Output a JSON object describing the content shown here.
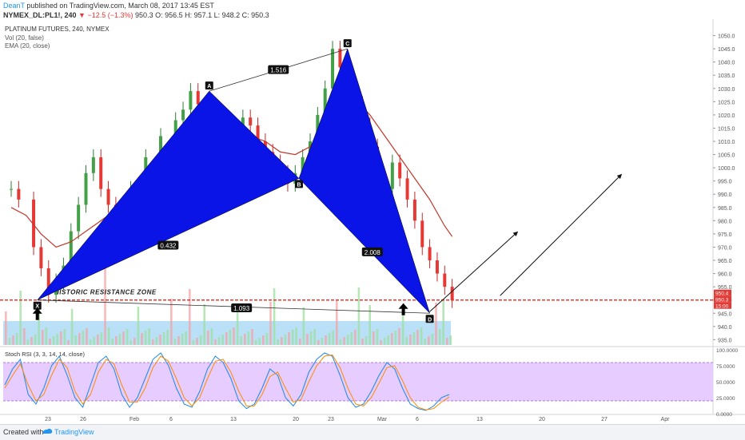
{
  "header": {
    "author": "DeanT",
    "published": "published on TradingView.com, March 08, 2017 13:45 EST",
    "symbol": "NYMEX_DL:PL1!, 240",
    "arrow": "▼",
    "change": "−12.5 (−1.3%)",
    "ohlc": "950.3 O: 956.5 H: 957.1 L: 948.2 C: 950.3"
  },
  "colors": {
    "pattern": "#0a14e6",
    "ema": "#c0392b",
    "volume_up": "#9fdf9f",
    "volume_down": "#f5a3a3",
    "volume_band": "#7fc6ee",
    "stoch_band": "#e6ccff",
    "resistance": "#e53935"
  },
  "chart_data": [
    {
      "type": "line",
      "title": "PLATINUM FUTURES, 240, NYMEX",
      "indicators": [
        "Vol (20, false)",
        "EMA (20, close)"
      ],
      "ylim": [
        933,
        1055
      ],
      "y_ticks": [
        "935.0",
        "940.0",
        "945.0",
        "950.0",
        "955.0",
        "960.0",
        "965.0",
        "970.0",
        "975.0",
        "980.0",
        "985.0",
        "990.0",
        "995.0",
        "1000.0",
        "1005.0",
        "1010.0",
        "1015.0",
        "1020.0",
        "1025.0",
        "1030.0",
        "1035.0",
        "1040.0",
        "1045.0",
        "1050.0"
      ],
      "x_ticks": [
        "23",
        "26",
        "Feb",
        "6",
        "13",
        "20",
        "23",
        "Mar",
        "6",
        "13",
        "20",
        "27",
        "Apr"
      ],
      "series": [
        {
          "name": "price",
          "points": [
            [
              0,
              992
            ],
            [
              1,
              988
            ],
            [
              3,
              970
            ],
            [
              4,
              962
            ],
            [
              5,
              952
            ],
            [
              6,
              957
            ],
            [
              7,
              963
            ],
            [
              8,
              976
            ],
            [
              9,
              986
            ],
            [
              10,
              998
            ],
            [
              11,
              1004
            ],
            [
              12,
              992
            ],
            [
              13,
              986
            ],
            [
              14,
              980
            ],
            [
              16,
              992
            ],
            [
              18,
              1004
            ],
            [
              20,
              1012
            ],
            [
              22,
              1018
            ],
            [
              23,
              1022
            ],
            [
              24,
              1029
            ],
            [
              25,
              1024
            ],
            [
              26,
              1018
            ],
            [
              27,
              1012
            ],
            [
              28,
              1008
            ],
            [
              30,
              1012
            ],
            [
              31,
              1019
            ],
            [
              32,
              1016
            ],
            [
              33,
              1010
            ],
            [
              34,
              1006
            ],
            [
              35,
              1002
            ],
            [
              36,
              998
            ],
            [
              37,
              994
            ],
            [
              38,
              998
            ],
            [
              39,
              1004
            ],
            [
              40,
              1010
            ],
            [
              41,
              1020
            ],
            [
              42,
              1030
            ],
            [
              43,
              1045
            ],
            [
              44,
              1038
            ],
            [
              45,
              1032
            ],
            [
              46,
              1024
            ],
            [
              47,
              1016
            ],
            [
              48,
              1008
            ],
            [
              49,
              996
            ],
            [
              50,
              992
            ],
            [
              51,
              1002
            ],
            [
              52,
              996
            ],
            [
              53,
              988
            ],
            [
              54,
              980
            ],
            [
              55,
              970
            ],
            [
              56,
              965
            ],
            [
              57,
              960
            ],
            [
              58,
              955
            ],
            [
              59,
              950
            ]
          ]
        },
        {
          "name": "EMA (20, close)",
          "points": [
            [
              0,
              985
            ],
            [
              2,
              982
            ],
            [
              4,
              975
            ],
            [
              6,
              970
            ],
            [
              8,
              972
            ],
            [
              10,
              976
            ],
            [
              12,
              980
            ],
            [
              14,
              984
            ],
            [
              16,
              988
            ],
            [
              18,
              993
            ],
            [
              20,
              998
            ],
            [
              22,
              1005
            ],
            [
              24,
              1012
            ],
            [
              26,
              1016
            ],
            [
              28,
              1010
            ],
            [
              30,
              1008
            ],
            [
              32,
              1012
            ],
            [
              34,
              1010
            ],
            [
              36,
              1006
            ],
            [
              38,
              1005
            ],
            [
              40,
              1008
            ],
            [
              42,
              1016
            ],
            [
              44,
              1026
            ],
            [
              45,
              1028
            ],
            [
              46,
              1026
            ],
            [
              48,
              1020
            ],
            [
              50,
              1012
            ],
            [
              52,
              1004
            ],
            [
              54,
              996
            ],
            [
              56,
              988
            ],
            [
              58,
              978
            ],
            [
              59,
              974
            ]
          ]
        }
      ],
      "pattern": {
        "points": [
          {
            "label": "X",
            "x": 3.5,
            "y": 950
          },
          {
            "label": "A",
            "x": 26.5,
            "y": 1029
          },
          {
            "label": "B",
            "x": 38.5,
            "y": 996
          },
          {
            "label": "C",
            "x": 45,
            "y": 1045
          },
          {
            "label": "D",
            "x": 56,
            "y": 945
          }
        ],
        "ratios": [
          "1.516",
          "0.432",
          "2.008",
          "1.093"
        ]
      },
      "annotations": [
        "HISTORIC RESISTANCE ZONE"
      ],
      "price_labels": [
        "950.4",
        "950.3",
        "15:00"
      ],
      "resistance_level": 950
    },
    {
      "type": "line",
      "title": "Stoch RSI (3, 3, 14, 14, close)",
      "ylim": [
        0,
        100
      ],
      "y_ticks": [
        "0.0000",
        "25.0000",
        "50.0000",
        "75.0000",
        "100.0000"
      ],
      "bands": [
        20,
        80
      ],
      "series": [
        {
          "name": "K",
          "values": [
            45,
            70,
            85,
            30,
            15,
            40,
            75,
            90,
            60,
            25,
            10,
            45,
            80,
            90,
            70,
            30,
            10,
            25,
            55,
            85,
            95,
            75,
            40,
            15,
            10,
            35,
            70,
            90,
            80,
            55,
            20,
            8,
            15,
            40,
            70,
            60,
            25,
            12,
            30,
            65,
            85,
            95,
            90,
            60,
            25,
            10,
            15,
            35,
            60,
            80,
            70,
            40,
            15,
            8,
            5,
            12,
            25,
            30
          ]
        },
        {
          "name": "D",
          "values": [
            40,
            60,
            78,
            45,
            20,
            30,
            60,
            85,
            72,
            35,
            15,
            30,
            65,
            85,
            78,
            45,
            18,
            18,
            40,
            72,
            90,
            82,
            55,
            25,
            12,
            25,
            55,
            82,
            85,
            65,
            35,
            12,
            12,
            30,
            58,
            65,
            40,
            18,
            22,
            50,
            75,
            90,
            92,
            72,
            40,
            15,
            12,
            25,
            48,
            72,
            75,
            52,
            25,
            10,
            6,
            8,
            18,
            26
          ]
        }
      ]
    }
  ],
  "footer": {
    "created_with": "Created with",
    "brand": "TradingView"
  }
}
